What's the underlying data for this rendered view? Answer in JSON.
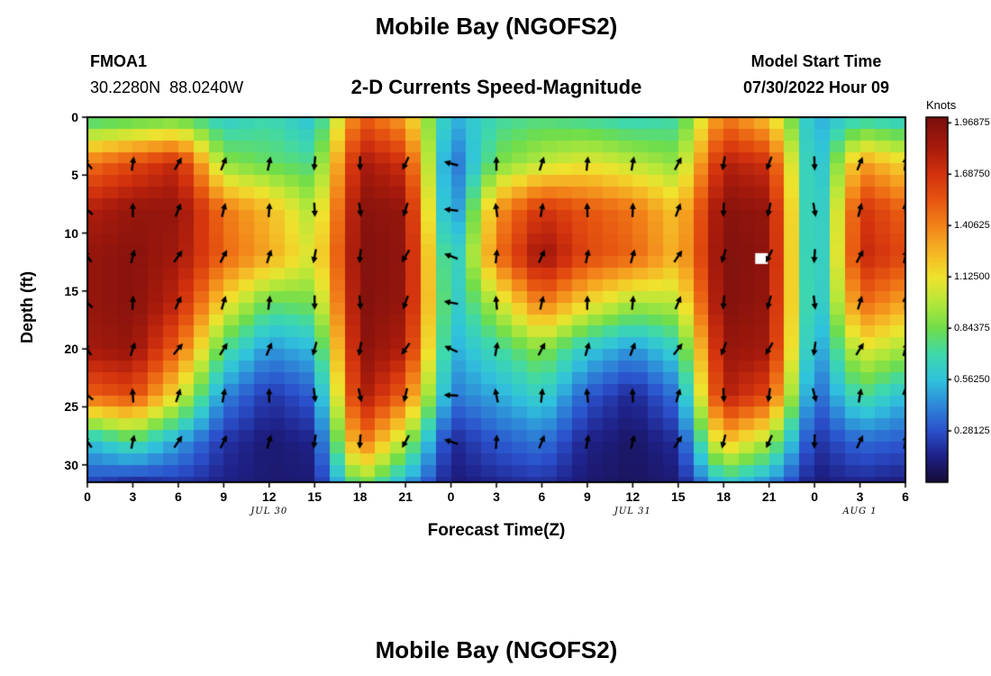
{
  "page": {
    "title_top": "Mobile Bay (NGOFS2)",
    "title_bottom": "Mobile Bay (NGOFS2)"
  },
  "header": {
    "station": "FMOA1",
    "coordinates": "30.2280N  88.0240W",
    "plot_title": "2-D Currents Speed-Magnitude",
    "model_start_label": "Model Start Time",
    "model_start_value": "07/30/2022 Hour 09"
  },
  "colorbar": {
    "unit": "Knots",
    "vmin": 0,
    "vmax": 2.0,
    "tick_values": [
      1.96875,
      1.6875,
      1.40625,
      1.125,
      0.84375,
      0.5625,
      0.28125
    ],
    "tick_labels": [
      "1.96875",
      "1.68750",
      "1.40625",
      "1.12500",
      "0.84375",
      "0.56250",
      "0.28125"
    ]
  },
  "axes": {
    "x_label": "Forecast Time(Z)",
    "y_label": "Depth (ft)",
    "x_range_hours": [
      0,
      54
    ],
    "depth_range_ft": [
      0,
      31.5
    ],
    "x_ticks_hours": [
      0,
      3,
      6,
      9,
      12,
      15,
      18,
      21,
      24,
      27,
      30,
      33,
      36,
      39,
      42,
      45,
      48,
      51,
      54
    ],
    "x_tick_labels": [
      "0",
      "3",
      "6",
      "9",
      "12",
      "15",
      "18",
      "21",
      "0",
      "3",
      "6",
      "9",
      "12",
      "15",
      "18",
      "21",
      "0",
      "3",
      "6"
    ],
    "y_ticks": [
      0,
      5,
      10,
      15,
      20,
      25,
      30
    ],
    "y_tick_labels": [
      "0",
      "5",
      "10",
      "15",
      "20",
      "25",
      "30"
    ],
    "date_labels": [
      {
        "text": "JUL 30",
        "hour": 12
      },
      {
        "text": "JUL 31",
        "hour": 36
      },
      {
        "text": "AUG 1",
        "hour": 51
      }
    ]
  },
  "chart_data": {
    "type": "heatmap",
    "title": "Mobile Bay (NGOFS2)",
    "subtitle": "2-D Currents Speed-Magnitude",
    "station": "FMOA1",
    "units": "Knots",
    "xlabel": "Forecast Time(Z)",
    "ylabel": "Depth (ft)",
    "x_hours": [
      0,
      3,
      6,
      9,
      12,
      15,
      18,
      21,
      24,
      27,
      30,
      33,
      36,
      39,
      42,
      45,
      48,
      51,
      54
    ],
    "depths_ft": [
      0,
      4,
      8,
      12,
      16,
      20,
      24,
      28,
      32
    ],
    "speed_knots": [
      [
        0.7,
        0.75,
        0.8,
        0.6,
        0.7,
        0.55,
        1.55,
        1.3,
        0.5,
        0.7,
        0.75,
        0.7,
        0.65,
        0.7,
        1.45,
        1.2,
        0.5,
        0.65,
        0.6
      ],
      [
        1.45,
        1.6,
        1.75,
        0.9,
        0.8,
        0.75,
        1.85,
        1.7,
        0.3,
        0.85,
        1.0,
        1.1,
        1.0,
        0.9,
        1.8,
        1.7,
        0.45,
        1.35,
        1.15
      ],
      [
        1.8,
        1.9,
        1.9,
        1.45,
        1.25,
        0.95,
        1.95,
        1.9,
        0.32,
        1.35,
        1.7,
        1.55,
        1.45,
        1.2,
        1.95,
        1.9,
        0.42,
        1.7,
        1.5
      ],
      [
        1.9,
        1.95,
        1.85,
        1.5,
        1.3,
        1.05,
        1.97,
        1.92,
        0.5,
        1.45,
        1.9,
        1.6,
        1.5,
        1.25,
        1.97,
        1.93,
        0.42,
        1.75,
        1.6
      ],
      [
        1.9,
        1.95,
        1.75,
        1.15,
        0.8,
        0.85,
        1.97,
        1.9,
        0.55,
        1.0,
        1.45,
        1.15,
        0.95,
        1.0,
        1.97,
        1.9,
        0.45,
        1.5,
        1.3
      ],
      [
        1.85,
        1.9,
        1.5,
        0.75,
        0.45,
        0.55,
        1.95,
        1.8,
        0.5,
        0.7,
        0.9,
        0.6,
        0.45,
        0.65,
        1.9,
        1.85,
        0.4,
        1.1,
        0.95
      ],
      [
        1.5,
        1.6,
        1.1,
        0.42,
        0.2,
        0.32,
        1.85,
        1.5,
        0.38,
        0.5,
        0.65,
        0.3,
        0.15,
        0.38,
        1.8,
        1.6,
        0.3,
        0.75,
        0.55
      ],
      [
        0.55,
        0.75,
        0.48,
        0.2,
        0.1,
        0.15,
        1.5,
        0.95,
        0.15,
        0.3,
        0.38,
        0.14,
        0.08,
        0.18,
        1.25,
        0.95,
        0.18,
        0.35,
        0.3
      ],
      [
        0.22,
        0.1,
        0.18,
        0.13,
        0.1,
        0.1,
        0.85,
        0.45,
        0.1,
        0.14,
        0.18,
        0.09,
        0.07,
        0.1,
        0.55,
        0.38,
        0.1,
        0.14,
        0.1
      ]
    ],
    "colormap": {
      "stops": [
        [
          0.0,
          "#160b38"
        ],
        [
          0.14,
          "#1e2086"
        ],
        [
          0.28,
          "#2b50cc"
        ],
        [
          0.42,
          "#2e87d8"
        ],
        [
          0.56,
          "#30c2dc"
        ],
        [
          0.7,
          "#3ed8ac"
        ],
        [
          0.84,
          "#6fdd4b"
        ],
        [
          0.98,
          "#b3e73a"
        ],
        [
          1.12,
          "#efe32d"
        ],
        [
          1.27,
          "#f5b224"
        ],
        [
          1.41,
          "#f28119"
        ],
        [
          1.55,
          "#e65410"
        ],
        [
          1.69,
          "#d2320e"
        ],
        [
          1.83,
          "#a81b0c"
        ],
        [
          2.0,
          "#7a0f0d"
        ]
      ]
    },
    "arrows": {
      "x_hours": [
        0,
        3,
        6,
        9,
        12,
        15,
        18,
        21,
        24,
        27,
        30,
        33,
        36,
        39,
        42,
        45,
        48,
        51,
        54
      ],
      "depths_ft": [
        4,
        8,
        12,
        16,
        20,
        24,
        28
      ],
      "angles_deg_cw_from_up": [
        [
          -40,
          8,
          30,
          22,
          12,
          185,
          180,
          205,
          285,
          0,
          18,
          6,
          10,
          28,
          190,
          200,
          178,
          22,
          6
        ],
        [
          -48,
          0,
          22,
          14,
          4,
          177,
          172,
          197,
          277,
          -8,
          10,
          -2,
          2,
          20,
          182,
          192,
          170,
          14,
          -2
        ],
        [
          -34,
          14,
          36,
          28,
          18,
          191,
          186,
          211,
          291,
          6,
          24,
          12,
          16,
          34,
          196,
          206,
          184,
          28,
          12
        ],
        [
          -45,
          3,
          25,
          17,
          7,
          180,
          175,
          200,
          280,
          -5,
          13,
          1,
          5,
          23,
          185,
          195,
          173,
          17,
          1
        ],
        [
          -30,
          18,
          40,
          32,
          22,
          195,
          190,
          215,
          295,
          10,
          28,
          16,
          20,
          38,
          200,
          210,
          188,
          32,
          16
        ],
        [
          -52,
          -4,
          18,
          10,
          0,
          173,
          168,
          193,
          273,
          -12,
          6,
          -6,
          -2,
          16,
          178,
          188,
          166,
          10,
          -6
        ],
        [
          -36,
          12,
          34,
          26,
          16,
          189,
          184,
          209,
          289,
          4,
          22,
          10,
          14,
          32,
          194,
          204,
          182,
          26,
          10
        ]
      ]
    },
    "missing_cells": [
      {
        "hour": 44.5,
        "depth_ft": 12.2
      }
    ]
  }
}
